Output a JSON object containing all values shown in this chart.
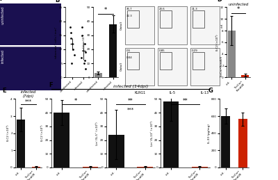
{
  "panel_B_scatter": {
    "y_uninfected": [
      5,
      8,
      10,
      12,
      14,
      16,
      18
    ],
    "y_infected": [
      3,
      5,
      6,
      7,
      9,
      12,
      15,
      18
    ],
    "ylabel": "tdtomato⁺ cells / mm²",
    "ylim": [
      0,
      25
    ],
    "yticks": [
      0,
      5,
      10,
      15,
      20,
      25
    ]
  },
  "panel_B_bar": {
    "categories": [
      "uninfected",
      "infected"
    ],
    "values": [
      3,
      38
    ],
    "errors": [
      1,
      6
    ],
    "ylabel": "ILC2 (×10⁵)",
    "ylim": [
      0,
      50
    ],
    "yticks": [
      0,
      10,
      20,
      30,
      40,
      50
    ],
    "bar_colors": [
      "#888888",
      "#111111"
    ],
    "sig_label": "*"
  },
  "panel_D": {
    "categories": [
      "ctrl.",
      "TieCre•Rorαfl/fl"
    ],
    "values": [
      8,
      0.4
    ],
    "errors": [
      2.5,
      0.2
    ],
    "ylabel": "ILC2 (×10⁵)",
    "ylim": [
      0,
      12
    ],
    "yticks": [
      0,
      2,
      4,
      6,
      8,
      10,
      12
    ],
    "bar_colors": [
      "#888888",
      "#cc2200"
    ],
    "title": "uninfected",
    "sig_label": "*"
  },
  "panel_E": {
    "categories": [
      "ctrl.",
      "TieCre•Rorαfl/fl"
    ],
    "values": [
      2.8,
      0.05
    ],
    "errors": [
      0.7,
      0.03
    ],
    "ylabel": "ILC2 (×10⁵)",
    "ylim": [
      0,
      4
    ],
    "yticks": [
      0,
      1,
      2,
      3,
      4
    ],
    "bar_colors": [
      "#111111",
      "#cc2200"
    ],
    "title_line1": "infected",
    "title_line2": "(7dpi)",
    "sig_label": "***"
  },
  "panel_F1": {
    "categories": [
      "ctrl.",
      "TieCre•Rorαfl/fl"
    ],
    "values": [
      40,
      0.5
    ],
    "errors": [
      9,
      0.3
    ],
    "ylabel": "ILC2 (×10⁵)",
    "ylim": [
      0,
      50
    ],
    "yticks": [
      0,
      10,
      20,
      30,
      40,
      50
    ],
    "bar_colors": [
      "#111111",
      "#cc2200"
    ],
    "sig_label": "*"
  },
  "panel_F2": {
    "categories": [
      "ctrl.",
      "TieCre•Rorαfl/fl"
    ],
    "values": [
      24,
      0.5
    ],
    "errors": [
      18,
      0.3
    ],
    "ylabel": "Lin⁻/IL-5⁺ (×10⁵)",
    "ylim": [
      0,
      50
    ],
    "yticks": [
      0,
      10,
      20,
      30,
      40,
      50
    ],
    "bar_colors": [
      "#111111",
      "#cc2200"
    ],
    "sig_label": "**"
  },
  "panel_F3": {
    "categories": [
      "ctrl.",
      "TieCre•Rorαfl/fl"
    ],
    "values": [
      48,
      0.5
    ],
    "errors": [
      14,
      0.3
    ],
    "ylabel": "Lin⁻/IL-13⁺ (×10⁵)",
    "ylim": [
      0,
      50
    ],
    "yticks": [
      0,
      10,
      20,
      30,
      40,
      50
    ],
    "bar_colors": [
      "#111111",
      "#cc2200"
    ],
    "sig_label": "**"
  },
  "panel_G": {
    "categories": [
      "ctrl.",
      "TieCre•Rorαfl/fl"
    ],
    "values": [
      600,
      565
    ],
    "errors": [
      90,
      75
    ],
    "ylabel": "IL-33 (pg/mg)",
    "ylim": [
      0,
      800
    ],
    "yticks": [
      0,
      200,
      400,
      600,
      800
    ],
    "bar_colors": [
      "#111111",
      "#cc2200"
    ]
  },
  "flow_percentages_top": [
    "35.7",
    "23.6",
    "11.3"
  ],
  "flow_percentages_top2": [
    "32.3",
    "",
    ""
  ],
  "flow_percentages_bot": [
    "0.5",
    "0.85",
    "0.29"
  ],
  "flow_percentages_bot2": [
    "0.04",
    "",
    ""
  ],
  "flow_xlabels": [
    "KLRG1",
    "IL-5",
    "IL-13"
  ]
}
